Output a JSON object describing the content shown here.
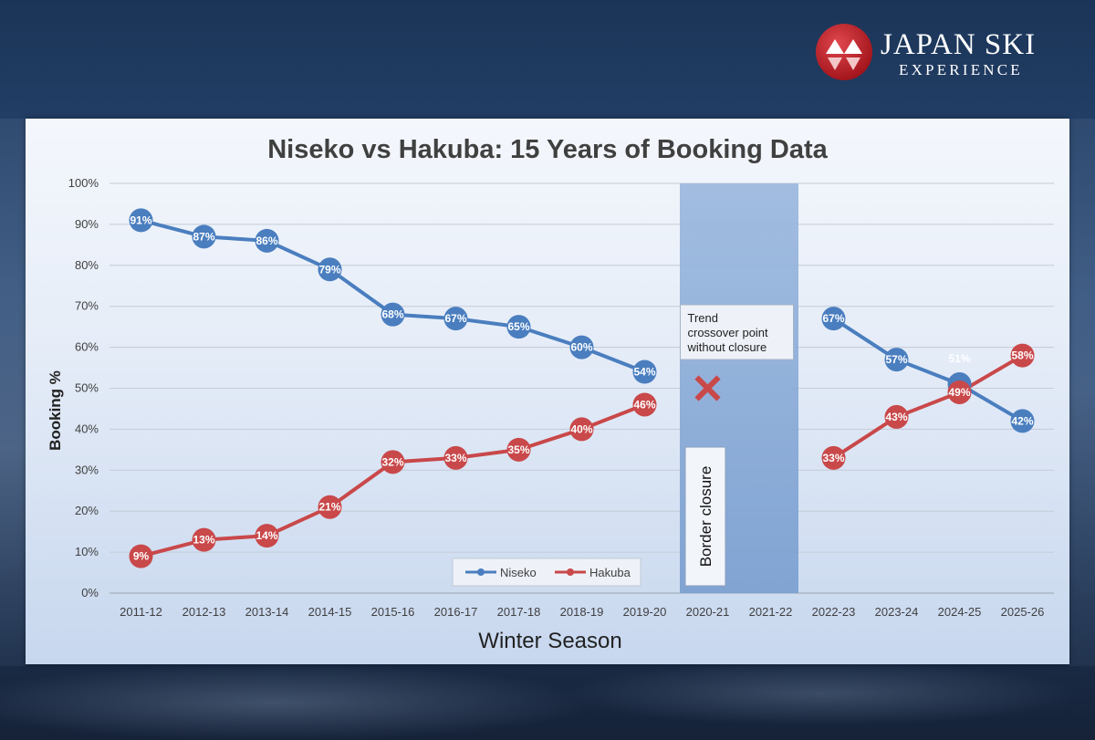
{
  "brand": {
    "line1": "JAPAN SKI",
    "line2": "EXPERIENCE",
    "colors": {
      "logo_red": "#c4262e",
      "text": "#ffffff"
    }
  },
  "chart_data": {
    "type": "line",
    "title": "Niseko vs Hakuba: 15 Years of Booking Data",
    "xlabel": "Winter Season",
    "ylabel": "Booking %",
    "categories": [
      "2011-12",
      "2012-13",
      "2013-14",
      "2014-15",
      "2015-16",
      "2016-17",
      "2017-18",
      "2018-19",
      "2019-20",
      "2020-21",
      "2021-22",
      "2022-23",
      "2023-24",
      "2024-25",
      "2025-26"
    ],
    "ylim": [
      0,
      100
    ],
    "yticks": [
      "0%",
      "10%",
      "20%",
      "30%",
      "40%",
      "50%",
      "60%",
      "70%",
      "80%",
      "90%",
      "100%"
    ],
    "grid": true,
    "legend_position": "bottom-center",
    "series": [
      {
        "name": "Niseko",
        "color": "#4a7ebf",
        "values": [
          91,
          87,
          86,
          79,
          68,
          67,
          65,
          60,
          54,
          null,
          null,
          67,
          57,
          51,
          42
        ],
        "labels": [
          "91%",
          "87%",
          "86%",
          "79%",
          "68%",
          "67%",
          "65%",
          "60%",
          "54%",
          "",
          "",
          "67%",
          "57%",
          "51%",
          "42%"
        ]
      },
      {
        "name": "Hakuba",
        "color": "#c9484a",
        "values": [
          9,
          13,
          14,
          21,
          32,
          33,
          35,
          40,
          46,
          null,
          null,
          33,
          43,
          49,
          58
        ],
        "labels": [
          "9%",
          "13%",
          "14%",
          "21%",
          "32%",
          "33%",
          "35%",
          "40%",
          "46%",
          "",
          "",
          "33%",
          "43%",
          "49%",
          "58%"
        ]
      }
    ],
    "shaded_region": {
      "from": "2020-21",
      "to": "2021-22",
      "label": "Border closure",
      "color": "#7a9fd0"
    },
    "annotation": {
      "text_lines": [
        "Trend",
        "crossover point",
        "without closure"
      ],
      "marker": "x",
      "marker_color": "#c9484a",
      "x": "2020-21",
      "y": 50
    }
  }
}
